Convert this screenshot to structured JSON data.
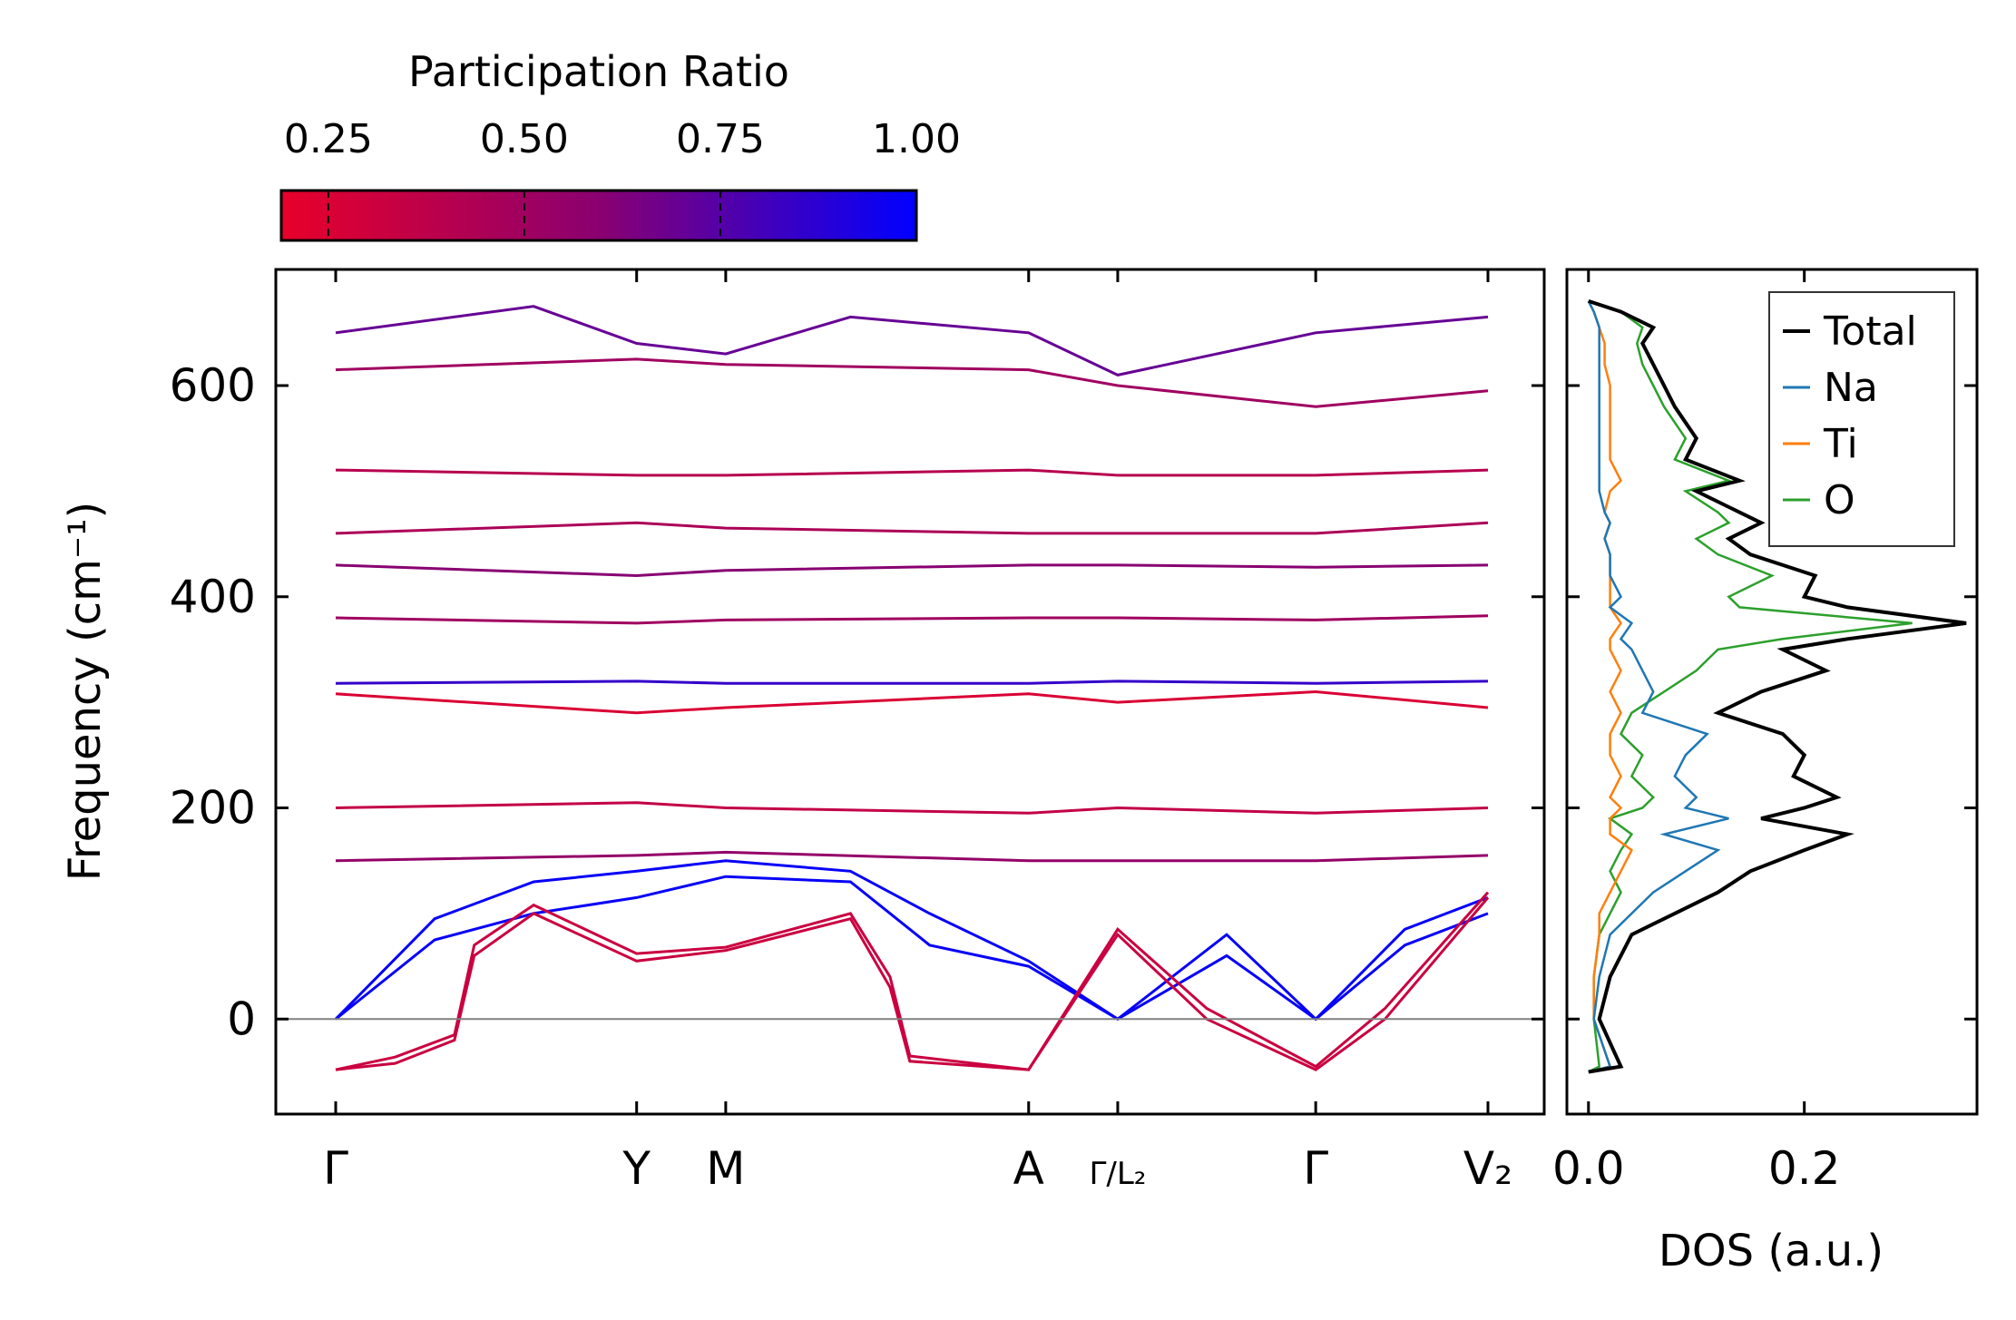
{
  "colorbar": {
    "title": "Participation Ratio",
    "ticks": [
      0.25,
      0.5,
      0.75,
      1.0
    ],
    "tick_labels": [
      "0.25",
      "0.50",
      "0.75",
      "1.00"
    ],
    "range": [
      0.19,
      1.0
    ],
    "color_low": "#e8002a",
    "color_mid": "#8a0070",
    "color_high": "#0000ff"
  },
  "chart_data": [
    {
      "type": "line",
      "title": "",
      "xlabel": "",
      "ylabel": "Frequency (cm⁻¹)",
      "ylim": [
        -90,
        710
      ],
      "yticks": [
        0,
        200,
        400,
        600
      ],
      "ytick_labels": [
        "0",
        "200",
        "400",
        "600"
      ],
      "xtick_labels": [
        "Γ",
        "Y",
        "M",
        "A",
        "Γ/L₂",
        "Γ",
        "V₂"
      ],
      "path_distances": [
        0,
        1.52,
        1.97,
        3.5,
        3.95,
        4.95,
        5.82
      ],
      "segments": [
        {
          "from": "Γ",
          "to": "Y",
          "x": [
            0,
            1.52
          ]
        },
        {
          "from": "Y",
          "to": "M",
          "x": [
            1.52,
            1.97
          ]
        },
        {
          "from": "M",
          "to": "A",
          "x": [
            1.97,
            3.5
          ]
        },
        {
          "from": "A",
          "to": "Γ",
          "x": [
            3.5,
            3.95
          ]
        },
        {
          "from": "L₂",
          "to": "Γ",
          "x": [
            3.95,
            4.95
          ]
        },
        {
          "from": "Γ",
          "to": "V₂",
          "x": [
            4.95,
            5.82
          ]
        }
      ],
      "zero_line": 0,
      "series_note": "phonon branches colored by participation ratio",
      "series": [
        {
          "name": "branch-acoustic-1",
          "pr": 0.98,
          "x": [
            0,
            0.5,
            1.0,
            1.52,
            1.97,
            2.6,
            3.0,
            3.5,
            3.95,
            4.5,
            4.95,
            5.4,
            5.82
          ],
          "y": [
            0,
            75,
            100,
            115,
            135,
            130,
            70,
            50,
            0,
            60,
            0,
            70,
            100
          ]
        },
        {
          "name": "branch-acoustic-2",
          "pr": 0.98,
          "x": [
            0,
            0.5,
            1.0,
            1.52,
            1.97,
            2.6,
            3.0,
            3.5,
            3.95,
            4.5,
            4.95,
            5.4,
            5.82
          ],
          "y": [
            0,
            95,
            130,
            140,
            150,
            140,
            100,
            55,
            0,
            80,
            0,
            85,
            115
          ]
        },
        {
          "name": "branch-soft-1",
          "pr": 0.32,
          "x": [
            0,
            0.3,
            0.6,
            0.7,
            1.0,
            1.52,
            1.97,
            2.6,
            2.8,
            2.9,
            3.5,
            3.95,
            4.4,
            4.95,
            5.3,
            5.82
          ],
          "y": [
            -48,
            -42,
            -20,
            60,
            100,
            55,
            65,
            95,
            30,
            -40,
            -48,
            80,
            0,
            -48,
            0,
            115
          ]
        },
        {
          "name": "branch-soft-2",
          "pr": 0.32,
          "x": [
            0,
            0.3,
            0.6,
            0.7,
            1.0,
            1.52,
            1.97,
            2.6,
            2.8,
            2.9,
            3.5,
            3.95,
            4.4,
            4.95,
            5.3,
            5.82
          ],
          "y": [
            -48,
            -36,
            -15,
            70,
            108,
            62,
            68,
            100,
            40,
            -35,
            -48,
            85,
            10,
            -45,
            10,
            120
          ]
        },
        {
          "name": "branch-150",
          "pr": 0.55,
          "x": [
            0,
            1.52,
            1.97,
            3.5,
            3.95,
            4.95,
            5.82
          ],
          "y": [
            150,
            155,
            158,
            150,
            150,
            150,
            155
          ]
        },
        {
          "name": "branch-200",
          "pr": 0.35,
          "x": [
            0,
            1.52,
            1.97,
            3.5,
            3.95,
            4.95,
            5.82
          ],
          "y": [
            200,
            205,
            200,
            195,
            200,
            195,
            200
          ]
        },
        {
          "name": "branch-300",
          "pr": 0.25,
          "x": [
            0,
            1.52,
            1.97,
            3.5,
            3.95,
            4.95,
            5.82
          ],
          "y": [
            308,
            290,
            295,
            308,
            300,
            310,
            295
          ]
        },
        {
          "name": "branch-320",
          "pr": 0.85,
          "x": [
            0,
            1.52,
            1.97,
            3.5,
            3.95,
            4.95,
            5.82
          ],
          "y": [
            318,
            320,
            318,
            318,
            320,
            318,
            320
          ]
        },
        {
          "name": "branch-380",
          "pr": 0.5,
          "x": [
            0,
            1.52,
            1.97,
            3.5,
            3.95,
            4.95,
            5.82
          ],
          "y": [
            380,
            375,
            378,
            380,
            380,
            378,
            382
          ]
        },
        {
          "name": "branch-430",
          "pr": 0.6,
          "x": [
            0,
            1.52,
            1.97,
            3.5,
            3.95,
            4.95,
            5.82
          ],
          "y": [
            430,
            420,
            425,
            430,
            430,
            428,
            430
          ]
        },
        {
          "name": "branch-460",
          "pr": 0.45,
          "x": [
            0,
            1.52,
            1.97,
            3.5,
            3.95,
            4.95,
            5.82
          ],
          "y": [
            460,
            470,
            465,
            460,
            460,
            460,
            470
          ]
        },
        {
          "name": "branch-520",
          "pr": 0.4,
          "x": [
            0,
            1.52,
            1.97,
            3.5,
            3.95,
            4.95,
            5.82
          ],
          "y": [
            520,
            515,
            515,
            520,
            515,
            515,
            520
          ]
        },
        {
          "name": "branch-615",
          "pr": 0.5,
          "x": [
            0,
            1.52,
            1.97,
            3.5,
            3.95,
            4.95,
            5.82
          ],
          "y": [
            615,
            625,
            620,
            615,
            600,
            580,
            595
          ]
        },
        {
          "name": "branch-650",
          "pr": 0.7,
          "x": [
            0,
            1.0,
            1.52,
            1.97,
            2.6,
            3.5,
            3.95,
            4.95,
            5.82
          ],
          "y": [
            650,
            675,
            640,
            630,
            665,
            650,
            610,
            650,
            665
          ]
        }
      ]
    },
    {
      "type": "line",
      "title": "",
      "xlabel": "DOS (a.u.)",
      "ylabel": "",
      "xlim": [
        -0.02,
        0.36
      ],
      "ylim": [
        -90,
        710
      ],
      "xticks": [
        0.0,
        0.2
      ],
      "xtick_labels": [
        "0.0",
        "0.2"
      ],
      "legend": "top-right",
      "series": [
        {
          "name": "Total",
          "color": "#000000",
          "y": [
            -50,
            -45,
            0,
            40,
            80,
            100,
            120,
            140,
            160,
            175,
            190,
            200,
            210,
            230,
            250,
            270,
            290,
            310,
            330,
            350,
            360,
            375,
            390,
            400,
            420,
            440,
            455,
            470,
            480,
            500,
            510,
            530,
            550,
            580,
            600,
            620,
            640,
            655,
            670,
            680
          ],
          "x": [
            0.0,
            0.03,
            0.01,
            0.02,
            0.04,
            0.08,
            0.12,
            0.15,
            0.2,
            0.24,
            0.16,
            0.2,
            0.23,
            0.19,
            0.2,
            0.18,
            0.12,
            0.16,
            0.22,
            0.18,
            0.24,
            0.35,
            0.24,
            0.2,
            0.21,
            0.15,
            0.13,
            0.16,
            0.14,
            0.1,
            0.14,
            0.09,
            0.1,
            0.08,
            0.07,
            0.06,
            0.05,
            0.06,
            0.03,
            0.0
          ]
        },
        {
          "name": "Na",
          "color": "#1f77b4",
          "y": [
            -50,
            -45,
            0,
            40,
            80,
            100,
            120,
            140,
            160,
            175,
            190,
            200,
            210,
            230,
            250,
            270,
            290,
            310,
            330,
            350,
            360,
            375,
            390,
            400,
            420,
            440,
            455,
            470,
            480,
            500,
            510,
            530,
            550,
            580,
            600,
            620,
            640,
            655,
            670,
            680
          ],
          "x": [
            0.0,
            0.02,
            0.005,
            0.01,
            0.02,
            0.04,
            0.06,
            0.09,
            0.12,
            0.07,
            0.13,
            0.09,
            0.1,
            0.08,
            0.09,
            0.11,
            0.05,
            0.06,
            0.05,
            0.04,
            0.03,
            0.04,
            0.02,
            0.03,
            0.02,
            0.02,
            0.015,
            0.02,
            0.015,
            0.01,
            0.01,
            0.01,
            0.01,
            0.01,
            0.01,
            0.01,
            0.01,
            0.01,
            0.005,
            0.0
          ]
        },
        {
          "name": "Ti",
          "color": "#ff7f0e",
          "y": [
            -50,
            -45,
            0,
            40,
            80,
            100,
            120,
            140,
            160,
            175,
            190,
            200,
            210,
            230,
            250,
            270,
            290,
            310,
            330,
            350,
            360,
            375,
            390,
            400,
            420,
            440,
            455,
            470,
            480,
            500,
            510,
            530,
            550,
            580,
            600,
            620,
            640,
            655,
            670,
            680
          ],
          "x": [
            0.0,
            0.02,
            0.005,
            0.005,
            0.01,
            0.01,
            0.02,
            0.03,
            0.04,
            0.02,
            0.02,
            0.03,
            0.02,
            0.03,
            0.02,
            0.02,
            0.03,
            0.02,
            0.03,
            0.02,
            0.02,
            0.03,
            0.02,
            0.02,
            0.02,
            0.02,
            0.015,
            0.02,
            0.015,
            0.02,
            0.03,
            0.02,
            0.02,
            0.02,
            0.02,
            0.015,
            0.015,
            0.01,
            0.005,
            0.0
          ]
        },
        {
          "name": "O",
          "color": "#2ca02c",
          "y": [
            -50,
            -45,
            0,
            40,
            80,
            100,
            120,
            140,
            160,
            175,
            190,
            200,
            210,
            230,
            250,
            270,
            290,
            310,
            330,
            350,
            360,
            375,
            390,
            400,
            420,
            440,
            455,
            470,
            480,
            500,
            510,
            530,
            550,
            580,
            600,
            620,
            640,
            655,
            670,
            680
          ],
          "x": [
            0.0,
            0.01,
            0.005,
            0.005,
            0.01,
            0.02,
            0.03,
            0.02,
            0.03,
            0.04,
            0.02,
            0.05,
            0.06,
            0.04,
            0.05,
            0.03,
            0.04,
            0.07,
            0.1,
            0.12,
            0.18,
            0.3,
            0.14,
            0.13,
            0.17,
            0.12,
            0.1,
            0.13,
            0.12,
            0.09,
            0.13,
            0.08,
            0.09,
            0.07,
            0.06,
            0.05,
            0.045,
            0.05,
            0.03,
            0.0
          ]
        }
      ]
    }
  ]
}
